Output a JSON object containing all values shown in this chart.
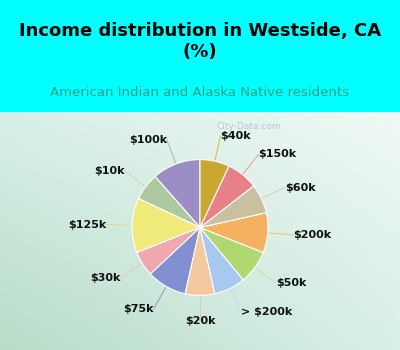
{
  "title": "Income distribution in Westside, CA\n(%)",
  "subtitle": "American Indian and Alaska Native residents",
  "watermark": "City-Data.com",
  "labels": [
    "$100k",
    "$10k",
    "$125k",
    "$30k",
    "$75k",
    "$20k",
    "> $200k",
    "$50k",
    "$200k",
    "$60k",
    "$150k",
    "$40k"
  ],
  "sizes": [
    11.5,
    6.5,
    13.0,
    6.0,
    9.5,
    7.0,
    7.5,
    8.0,
    9.5,
    7.0,
    7.5,
    7.0
  ],
  "colors": [
    "#9b8ec4",
    "#aec9a0",
    "#f0ea7a",
    "#f0a8b0",
    "#8090d0",
    "#f5c9a0",
    "#a8c8f0",
    "#b0d870",
    "#f5b060",
    "#c8c0a0",
    "#e88088",
    "#c8a830"
  ],
  "bg_top": "#00ffff",
  "bg_chart_top": "#e8f5f0",
  "bg_chart_bottom": "#c8e8d8",
  "title_color": "#000000",
  "subtitle_color": "#30a080",
  "title_fontsize": 13,
  "subtitle_fontsize": 9.5,
  "label_fontsize": 8,
  "startangle": 90,
  "line_colors": [
    "#b0a0d8",
    "#c0d8b0",
    "#e0d880",
    "#f0c0c8",
    "#9090c0",
    "#f0c0a0",
    "#c0d8f0",
    "#c0e890",
    "#f0b870",
    "#d0c8b0",
    "#f09090",
    "#d0b040"
  ]
}
